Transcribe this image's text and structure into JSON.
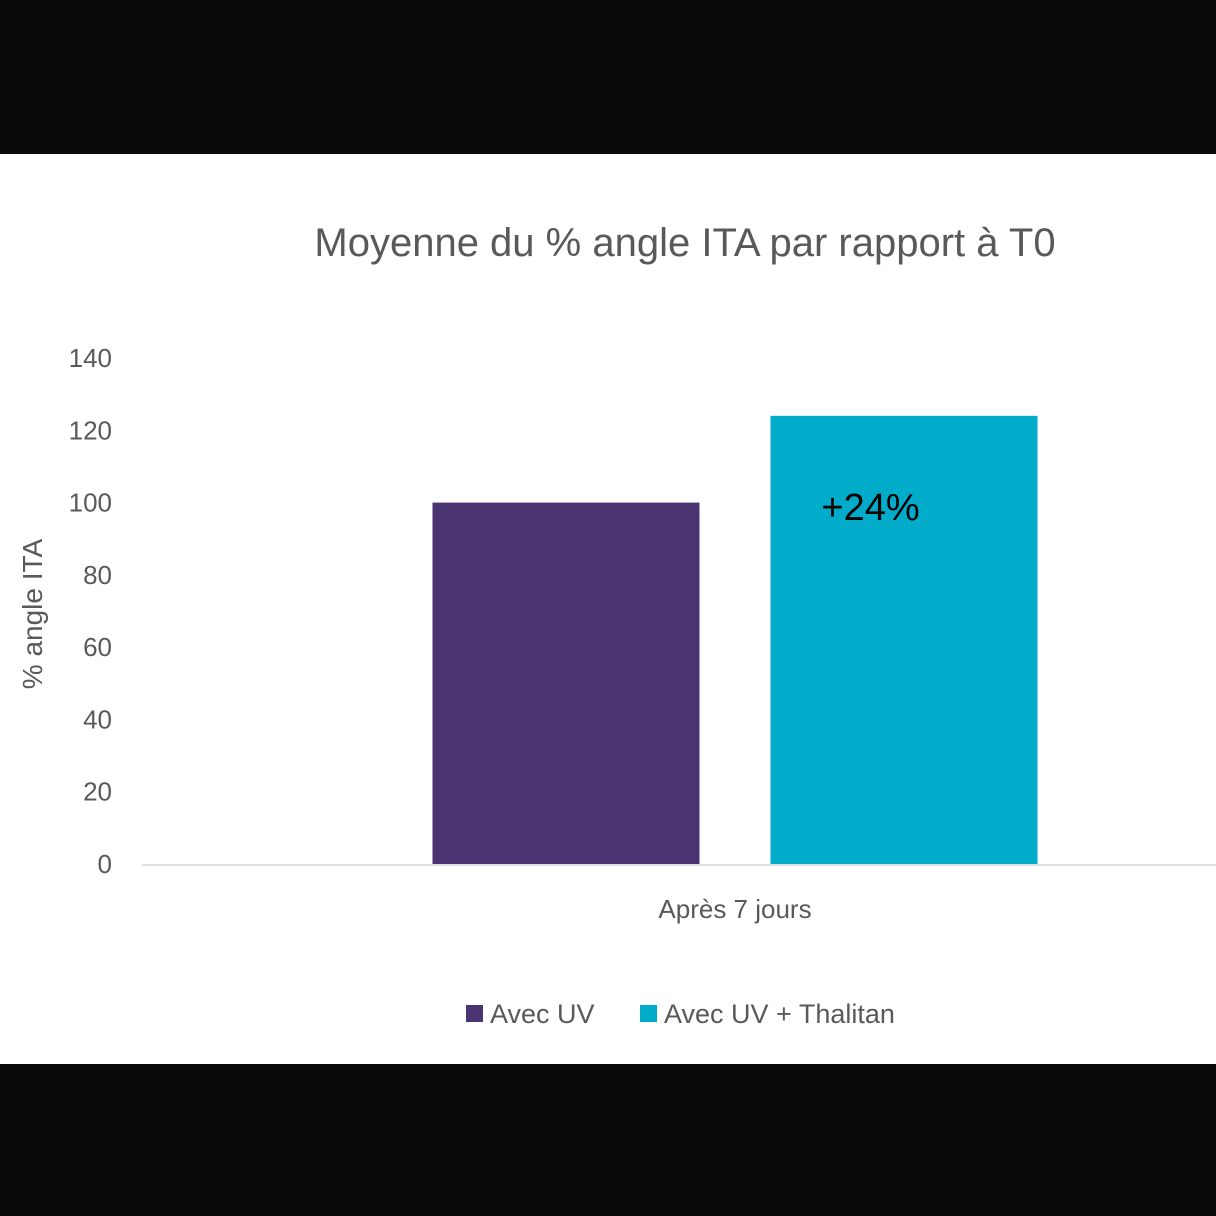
{
  "chart_data": {
    "type": "bar",
    "title": "Moyenne du % angle ITA par rapport à T0",
    "xlabel": "",
    "ylabel": "% angle ITA",
    "ylim": [
      0,
      140
    ],
    "yticks": [
      0,
      20,
      40,
      60,
      80,
      100,
      120,
      140
    ],
    "ytick_labels": [
      "0",
      "20",
      "40",
      "60",
      "80",
      "100",
      "120",
      "140"
    ],
    "categories": [
      "Après 7 jours"
    ],
    "grid": false,
    "legend_position": "bottom",
    "series": [
      {
        "name": "Avec UV",
        "values": [
          100
        ],
        "color": "#4a3572"
      },
      {
        "name": "Avec UV + Thalitan",
        "values": [
          124
        ],
        "color": "#00acca"
      }
    ],
    "annotations": [
      {
        "text": "+24%",
        "series": 1,
        "category": 0
      }
    ]
  }
}
